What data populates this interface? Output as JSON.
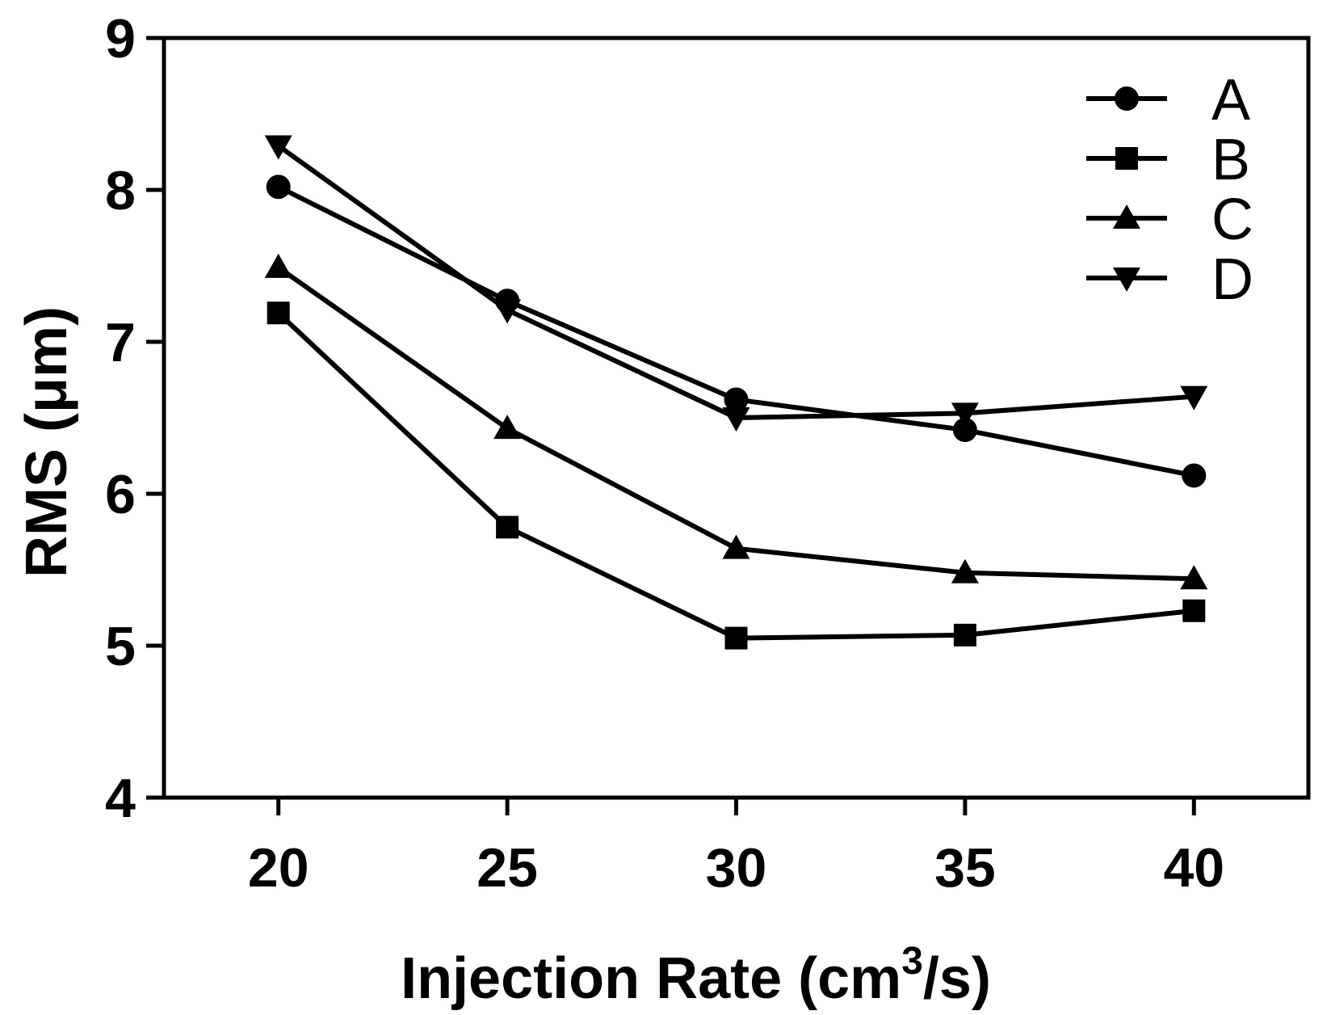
{
  "chart_data": {
    "type": "line",
    "title": "",
    "xlabel": "Injection Rate (cm",
    "xlabel_sup": "3",
    "xlabel_end": "/s)",
    "ylabel": "RMS (μm)",
    "x": [
      20,
      25,
      30,
      35,
      40
    ],
    "xticks": [
      "20",
      "25",
      "30",
      "35",
      "40"
    ],
    "xlim": [
      17.5,
      42.5
    ],
    "ylim": [
      4,
      9
    ],
    "yticks": [
      "4",
      "5",
      "6",
      "7",
      "8",
      "9"
    ],
    "grid": false,
    "legend_position": "top-right",
    "series": [
      {
        "name": "A",
        "marker": "circle",
        "values": [
          8.02,
          7.27,
          6.62,
          6.42,
          6.12
        ]
      },
      {
        "name": "B",
        "marker": "square",
        "values": [
          7.19,
          5.78,
          5.05,
          5.07,
          5.23
        ]
      },
      {
        "name": "C",
        "marker": "triangle-up",
        "values": [
          7.49,
          6.43,
          5.64,
          5.48,
          5.44
        ]
      },
      {
        "name": "D",
        "marker": "triangle-down",
        "values": [
          8.29,
          7.21,
          6.5,
          6.53,
          6.64
        ]
      }
    ],
    "colors": {
      "line": "#000000",
      "background": "#ffffff"
    }
  }
}
